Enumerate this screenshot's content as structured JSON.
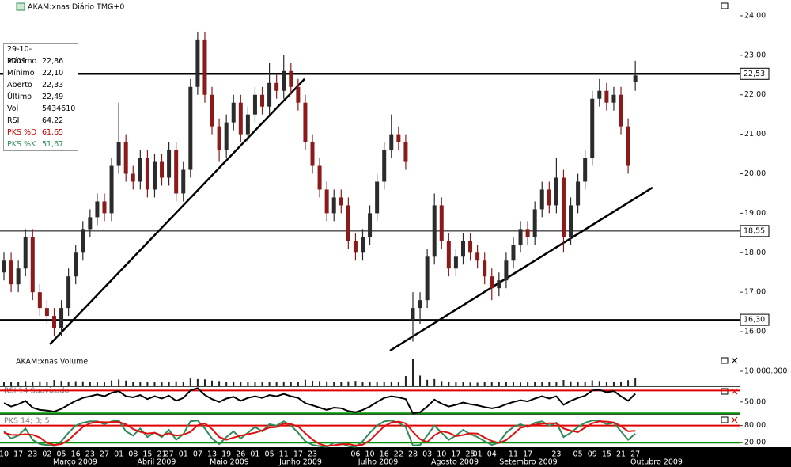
{
  "chart_data": [
    {
      "type": "candlestick",
      "title": "AKAM:xnas Diário TMG+0",
      "categories": [
        "10",
        null,
        "17",
        null,
        "23",
        null,
        "02",
        null,
        "05",
        null,
        "16",
        null,
        "23",
        null,
        "27",
        null,
        "01",
        null,
        "08",
        null,
        "15",
        null,
        "21",
        "27",
        null,
        "01",
        null,
        "07",
        null,
        "13",
        null,
        "19",
        null,
        "26",
        null,
        "01",
        null,
        "05",
        null,
        "11",
        null,
        "17",
        null,
        "23",
        null,
        null,
        null,
        null,
        null,
        "06",
        null,
        "10",
        null,
        "16",
        null,
        "22",
        null,
        "28",
        null,
        "03",
        null,
        "10",
        null,
        "17",
        null,
        "25",
        "01",
        null,
        "04",
        null,
        null,
        "11",
        null,
        "17",
        null,
        null,
        null,
        "23",
        null,
        null,
        "05",
        null,
        "09",
        null,
        "15",
        null,
        "21",
        null,
        "27"
      ],
      "months": [
        "Março 2009",
        "Abril 2009",
        "Maio 2009",
        "Junho 2009",
        "Julho 2009",
        "Agosto 2009",
        "Setembro 2009",
        "Outubro 2009"
      ],
      "open": [
        17.5,
        17.8,
        17.2,
        17.6,
        18.4,
        17.0,
        16.6,
        16.4,
        16.1,
        16.6,
        17.4,
        18.0,
        18.6,
        18.9,
        19.3,
        19.0,
        20.2,
        20.8,
        20.0,
        19.8,
        20.4,
        19.6,
        20.3,
        19.9,
        20.6,
        19.5,
        20.1,
        22.2,
        23.4,
        22.0,
        21.2,
        20.6,
        21.3,
        21.8,
        21.0,
        21.5,
        22.0,
        21.7,
        22.3,
        22.1,
        22.6,
        22.2,
        21.8,
        20.8,
        20.2,
        19.6,
        19.0,
        19.4,
        19.2,
        18.3,
        18.0,
        18.4,
        19.0,
        19.8,
        20.6,
        21.0,
        20.8,
        16.3,
        16.6,
        16.8,
        17.9,
        19.2,
        18.3,
        17.6,
        17.9,
        18.3,
        18.0,
        17.8,
        17.4,
        17.1,
        17.3,
        17.8,
        18.2,
        18.6,
        18.4,
        19.1,
        19.6,
        19.2,
        19.9,
        18.4,
        19.2,
        19.8,
        20.4,
        21.9,
        22.1,
        21.8,
        22.0,
        21.2,
        22.33
      ],
      "high": [
        18.0,
        18.0,
        17.8,
        18.6,
        18.6,
        17.2,
        16.8,
        16.6,
        16.8,
        17.6,
        18.2,
        18.8,
        19.1,
        19.5,
        19.5,
        20.4,
        21.8,
        21.0,
        20.2,
        20.6,
        20.6,
        20.5,
        20.5,
        20.8,
        20.8,
        20.3,
        22.4,
        23.6,
        23.6,
        22.2,
        21.4,
        21.5,
        22.0,
        22.0,
        21.7,
        22.2,
        22.2,
        22.8,
        22.5,
        23.0,
        22.8,
        22.4,
        22.0,
        21.0,
        20.4,
        19.8,
        19.6,
        19.6,
        19.4,
        18.5,
        18.6,
        19.2,
        20.0,
        20.8,
        21.5,
        21.2,
        21.0,
        17.0,
        17.0,
        18.1,
        19.5,
        19.4,
        18.5,
        18.1,
        18.5,
        18.5,
        18.2,
        18.0,
        17.6,
        17.5,
        18.0,
        18.4,
        18.8,
        18.8,
        19.3,
        19.8,
        19.8,
        20.4,
        20.1,
        19.4,
        20.0,
        20.6,
        22.1,
        22.4,
        22.3,
        22.2,
        22.2,
        21.4,
        22.86
      ],
      "low": [
        17.3,
        17.0,
        17.0,
        17.4,
        16.8,
        16.4,
        16.2,
        15.9,
        15.9,
        16.4,
        17.2,
        17.8,
        18.4,
        18.7,
        18.8,
        18.8,
        20.0,
        19.8,
        19.6,
        19.6,
        19.4,
        19.4,
        19.7,
        19.7,
        19.3,
        19.3,
        19.9,
        22.0,
        21.8,
        21.0,
        20.3,
        20.4,
        21.1,
        20.8,
        20.8,
        21.3,
        21.5,
        21.5,
        21.9,
        21.9,
        22.0,
        21.6,
        20.6,
        20.0,
        19.4,
        18.8,
        18.8,
        19.0,
        18.1,
        17.8,
        17.8,
        18.2,
        18.8,
        19.6,
        20.4,
        20.6,
        20.1,
        15.75,
        16.2,
        16.6,
        17.7,
        18.1,
        17.4,
        17.4,
        17.7,
        17.8,
        17.6,
        17.2,
        16.8,
        16.9,
        17.1,
        17.6,
        18.0,
        18.2,
        18.2,
        18.9,
        19.0,
        19.0,
        18.0,
        18.2,
        19.0,
        19.6,
        20.2,
        21.7,
        21.6,
        21.6,
        21.0,
        20.0,
        22.1
      ],
      "close": [
        17.8,
        17.2,
        17.6,
        18.4,
        17.0,
        16.6,
        16.4,
        16.1,
        16.6,
        17.4,
        18.0,
        18.6,
        18.9,
        19.3,
        19.0,
        20.2,
        20.8,
        20.0,
        19.8,
        20.4,
        19.6,
        20.3,
        19.9,
        20.6,
        19.5,
        20.1,
        22.2,
        23.4,
        22.0,
        21.2,
        20.6,
        21.3,
        21.8,
        21.0,
        21.5,
        22.0,
        21.7,
        22.3,
        22.1,
        22.6,
        22.2,
        21.8,
        20.8,
        20.2,
        19.6,
        19.0,
        19.4,
        19.2,
        18.3,
        18.0,
        18.4,
        19.0,
        19.8,
        20.6,
        21.0,
        20.8,
        20.3,
        16.6,
        16.8,
        17.9,
        19.2,
        18.3,
        17.6,
        17.9,
        18.3,
        18.0,
        17.8,
        17.4,
        17.1,
        17.3,
        17.8,
        18.2,
        18.6,
        18.4,
        19.1,
        19.6,
        19.2,
        19.9,
        18.4,
        19.2,
        19.8,
        20.4,
        21.9,
        22.1,
        21.8,
        22.0,
        21.2,
        20.2,
        22.49
      ],
      "up_color": "#2b2b2b",
      "down_color": "#8b1a1a",
      "ylim": [
        15.44,
        24.4
      ],
      "yticks": [
        {
          "value": 16,
          "label": "16,00"
        },
        {
          "value": 17,
          "label": "17,00"
        },
        {
          "value": 18,
          "label": "18,00"
        },
        {
          "value": 19,
          "label": "19,00"
        },
        {
          "value": 20,
          "label": "20,00"
        },
        {
          "value": 21,
          "label": "21,00"
        },
        {
          "value": 22,
          "label": "22,00"
        },
        {
          "value": 23,
          "label": "23,00"
        },
        {
          "value": 24,
          "label": "24,00"
        }
      ],
      "hlines": [
        {
          "value": 22.53,
          "label": "22,53",
          "width": 2.5
        },
        {
          "value": 18.55,
          "label": "18,55",
          "width": 1
        },
        {
          "value": 16.3,
          "label": "16,30",
          "width": 2
        }
      ],
      "trendlines": [
        {
          "x": [
            6.4,
            41.9
          ],
          "y": [
            15.68,
            22.4
          ]
        },
        {
          "x": [
            53.8,
            90.4
          ],
          "y": [
            15.52,
            19.65
          ]
        }
      ],
      "info": {
        "date": "29-10-2009",
        "rows": [
          [
            "Máximo",
            "22,86"
          ],
          [
            "Mínimo",
            "22,10"
          ],
          [
            "Aberto",
            "22,33"
          ],
          [
            "Último",
            "22,49"
          ],
          [
            "Vol",
            "5434610"
          ],
          [
            "RSI",
            "64,22"
          ],
          [
            "PKS %D",
            "61,65"
          ],
          [
            "PKS %K",
            "51,67"
          ]
        ]
      }
    },
    {
      "type": "bar",
      "title": "AKAM:xnas Volume",
      "color": "#222222",
      "values": [
        3100000,
        2800000,
        3000000,
        3500000,
        3200000,
        3300000,
        2900000,
        4200000,
        3600000,
        3100000,
        3400000,
        3300000,
        2700000,
        3000000,
        2600000,
        3900000,
        4500000,
        3800000,
        2800000,
        2900000,
        3100000,
        2700000,
        2600000,
        3000000,
        3300000,
        2800000,
        5200000,
        4800000,
        4600000,
        3800000,
        3500000,
        3000000,
        2900000,
        3100000,
        2700000,
        2800000,
        3000000,
        2900000,
        2600000,
        3200000,
        2800000,
        3000000,
        4400000,
        3700000,
        3500000,
        3300000,
        2900000,
        2700000,
        3300000,
        3600000,
        2800000,
        2700000,
        3000000,
        3100000,
        3200000,
        2700000,
        6800000,
        18200000,
        7100000,
        4300000,
        4800000,
        3500000,
        3000000,
        2600000,
        2700000,
        2500000,
        2400000,
        2800000,
        3000000,
        2600000,
        2900000,
        2700000,
        2500000,
        2600000,
        2800000,
        3000000,
        2700000,
        3100000,
        4200000,
        3300000,
        3000000,
        3200000,
        4000000,
        3500000,
        2900000,
        2800000,
        3200000,
        4100000,
        5434610
      ],
      "ylim": [
        0,
        20500000
      ],
      "yticks": [
        {
          "value": 10000000,
          "label": "10.000.000"
        }
      ]
    },
    {
      "type": "line",
      "title": "RSI 14 Suavizado",
      "series": [
        {
          "color": "#000000",
          "values": [
            48,
            42,
            46,
            52,
            40,
            36,
            35,
            33,
            38,
            45,
            52,
            57,
            60,
            63,
            60,
            66,
            69,
            60,
            58,
            62,
            55,
            60,
            56,
            61,
            52,
            57,
            70,
            74,
            62,
            55,
            50,
            56,
            59,
            52,
            57,
            60,
            57,
            62,
            60,
            64,
            60,
            57,
            48,
            44,
            40,
            36,
            40,
            39,
            34,
            32,
            36,
            42,
            50,
            57,
            60,
            58,
            55,
            30,
            32,
            42,
            54,
            47,
            42,
            45,
            49,
            46,
            44,
            41,
            39,
            41,
            46,
            50,
            53,
            51,
            56,
            60,
            56,
            60,
            45,
            52,
            57,
            61,
            70,
            71,
            67,
            69,
            60,
            52,
            64.22
          ]
        }
      ],
      "ylim": [
        29,
        76
      ],
      "yticks": [
        {
          "value": 50,
          "label": "50,00"
        }
      ],
      "hlines": [
        {
          "value": 70,
          "color": "#e00000"
        },
        {
          "value": 30,
          "color": "#009000"
        }
      ]
    },
    {
      "type": "line",
      "title": "PKS 14; 3; 5",
      "series": [
        {
          "color": "#2e8b57",
          "values": [
            60,
            35,
            45,
            70,
            30,
            15,
            12,
            8,
            25,
            55,
            80,
            90,
            95,
            95,
            85,
            95,
            98,
            60,
            45,
            70,
            40,
            55,
            40,
            65,
            30,
            50,
            95,
            98,
            70,
            35,
            15,
            40,
            60,
            35,
            55,
            75,
            60,
            85,
            80,
            95,
            80,
            55,
            25,
            12,
            8,
            5,
            20,
            18,
            8,
            5,
            25,
            55,
            80,
            95,
            98,
            90,
            75,
            10,
            12,
            45,
            80,
            55,
            30,
            45,
            65,
            50,
            40,
            25,
            12,
            20,
            55,
            75,
            85,
            75,
            90,
            95,
            80,
            90,
            40,
            55,
            75,
            90,
            98,
            98,
            85,
            90,
            60,
            30,
            51.67
          ]
        },
        {
          "color": "#e01010",
          "values": [
            55,
            48,
            47,
            50,
            48,
            38,
            19,
            12,
            15,
            29,
            53,
            75,
            88,
            93,
            92,
            92,
            93,
            84,
            68,
            58,
            52,
            55,
            45,
            53,
            45,
            48,
            58,
            81,
            88,
            68,
            40,
            30,
            38,
            45,
            50,
            55,
            63,
            73,
            75,
            87,
            85,
            77,
            53,
            31,
            15,
            8,
            11,
            14,
            15,
            10,
            13,
            28,
            53,
            77,
            91,
            94,
            88,
            58,
            32,
            22,
            46,
            60,
            55,
            43,
            47,
            53,
            52,
            38,
            26,
            19,
            29,
            50,
            72,
            78,
            83,
            87,
            88,
            88,
            70,
            62,
            57,
            73,
            88,
            95,
            94,
            91,
            78,
            60,
            61.65
          ]
        }
      ],
      "ylim": [
        4,
        118
      ],
      "yticks": [
        {
          "value": 80,
          "label": "80,00"
        },
        {
          "value": 20,
          "label": "20,00"
        }
      ],
      "hlines": [
        {
          "value": 80,
          "color": "#e00000"
        },
        {
          "value": 20,
          "color": "#009000"
        }
      ]
    }
  ]
}
